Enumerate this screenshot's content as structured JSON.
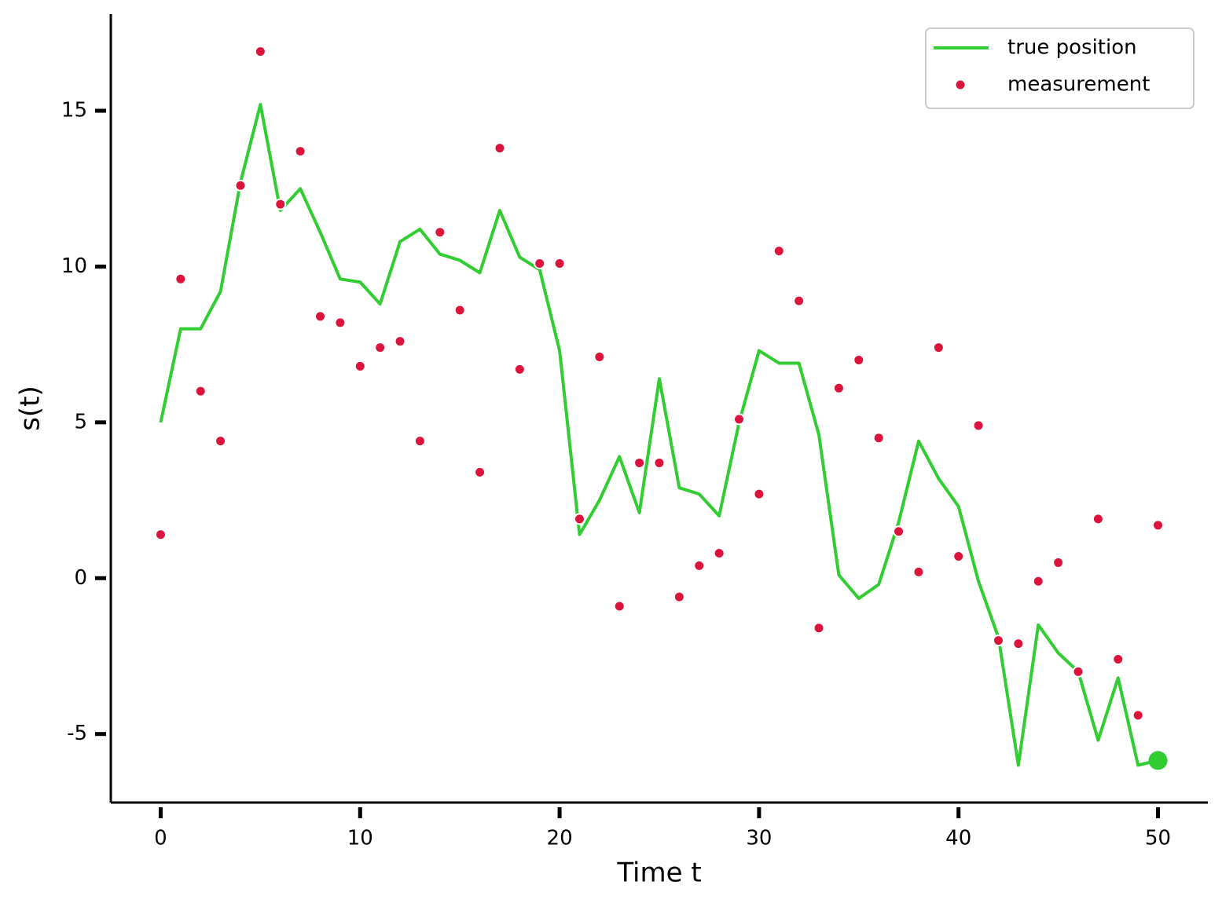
{
  "chart_data": {
    "type": "line",
    "xlabel": "Time t",
    "ylabel": "s(t)",
    "x": [
      0,
      1,
      2,
      3,
      4,
      5,
      6,
      7,
      8,
      9,
      10,
      11,
      12,
      13,
      14,
      15,
      16,
      17,
      18,
      19,
      20,
      21,
      22,
      23,
      24,
      25,
      26,
      27,
      28,
      29,
      30,
      31,
      32,
      33,
      34,
      35,
      36,
      37,
      38,
      39,
      40,
      41,
      42,
      43,
      44,
      45,
      46,
      47,
      48,
      49,
      50
    ],
    "series": [
      {
        "name": "true position",
        "color": "#32cd32",
        "mode": "line",
        "values": [
          5.0,
          8.0,
          8.0,
          9.2,
          12.7,
          15.2,
          11.8,
          12.5,
          11.1,
          9.6,
          9.5,
          8.8,
          10.8,
          11.2,
          10.4,
          10.2,
          9.8,
          11.8,
          10.3,
          9.9,
          7.3,
          1.4,
          2.5,
          3.9,
          2.1,
          6.4,
          2.9,
          2.7,
          2.0,
          5.0,
          7.3,
          6.9,
          6.9,
          4.6,
          0.1,
          -0.65,
          -0.2,
          1.8,
          4.4,
          3.2,
          2.3,
          -0.1,
          -1.9,
          -6.0,
          -1.5,
          -2.4,
          -3.0,
          -5.2,
          -3.2,
          -6.0,
          -5.85
        ]
      },
      {
        "name": "measurement",
        "color": "#dc143c",
        "mode": "markers",
        "values": [
          1.4,
          9.6,
          6.0,
          4.4,
          12.6,
          16.9,
          12.0,
          13.7,
          8.4,
          8.2,
          6.8,
          7.4,
          7.6,
          4.4,
          11.1,
          8.6,
          3.4,
          13.8,
          6.7,
          10.1,
          10.1,
          1.9,
          7.1,
          -0.9,
          3.7,
          3.7,
          -0.6,
          0.4,
          0.8,
          5.1,
          2.7,
          10.5,
          8.9,
          -1.6,
          6.1,
          7.0,
          4.5,
          1.5,
          0.2,
          7.4,
          0.7,
          4.9,
          -2.0,
          -2.1,
          -0.1,
          0.5,
          -3.0,
          1.9,
          -2.6,
          -4.4,
          1.7
        ]
      }
    ],
    "xlim": [
      -2.5,
      52.5
    ],
    "xticks": [
      0,
      10,
      20,
      30,
      40,
      50
    ],
    "ylim": [
      -7.2,
      18.1
    ],
    "yticks": [
      -5,
      0,
      5,
      10,
      15
    ],
    "legend": "upper right"
  }
}
